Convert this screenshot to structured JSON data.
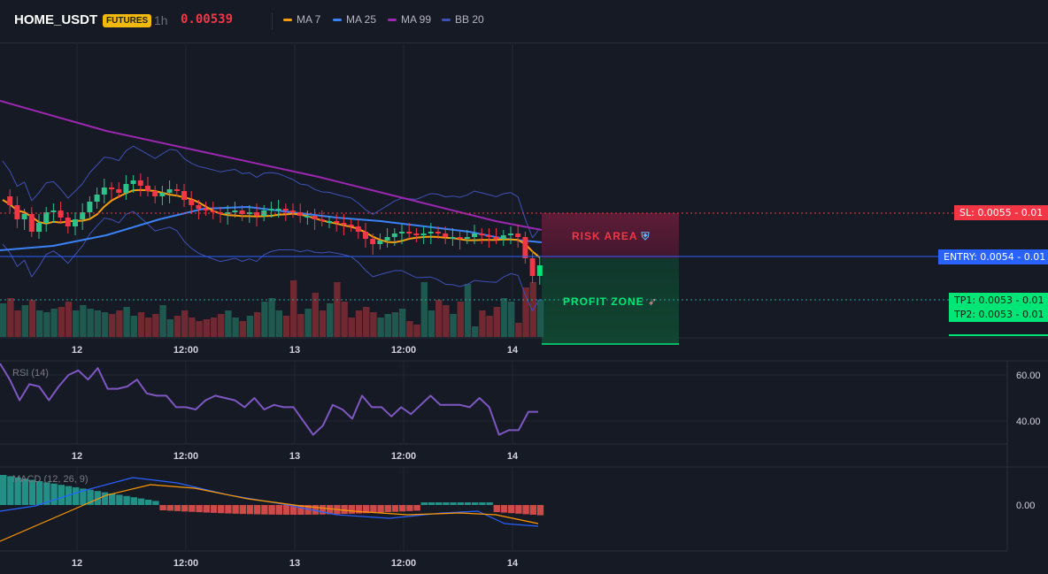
{
  "header": {
    "symbol": "HOME_USDT",
    "badge": "FUTURES",
    "timeframe": "1h",
    "price": "0.00539",
    "legend": [
      {
        "label": "MA 7",
        "color": "#f59e0b"
      },
      {
        "label": "MA 25",
        "color": "#3b82f6"
      },
      {
        "label": "MA 99",
        "color": "#9c27b0"
      },
      {
        "label": "BB 20",
        "color": "#3f51b5"
      }
    ]
  },
  "levels": {
    "sl": "SL: 0.0055 - 0.01",
    "entry": "ENTRY: 0.0054 - 0.01",
    "tp1": "TP1: 0.0053 - 0.01",
    "tp2": "TP2: 0.0053 - 0.01"
  },
  "zones": {
    "risk": "RISK AREA",
    "risk_icon": "shield-icon",
    "profit": "PROFIT ZONE",
    "profit_icon": "rocket-icon"
  },
  "colors": {
    "up": "#26a69a",
    "up_bright": "#00e676",
    "down": "#f23645",
    "ma7": "#f59e0b",
    "ma25": "#3b82f6",
    "ma99": "#9c27b0",
    "bb": "#3f51b5",
    "rsi": "#7e57c2",
    "macd_line": "#2962ff",
    "signal_line": "#ff9800"
  },
  "chart_data": [
    {
      "type": "candlestick",
      "x_ticks": [
        "12",
        "12:00",
        "13",
        "12:00",
        "14"
      ],
      "series": [
        {
          "name": "MA 7"
        },
        {
          "name": "MA 25"
        },
        {
          "name": "MA 99"
        },
        {
          "name": "BB 20"
        }
      ],
      "levels": {
        "sl": 0.0055,
        "entry": 0.0054,
        "tp1": 0.0053,
        "tp2": 0.0053
      }
    },
    {
      "type": "line",
      "title": "RSI (14)",
      "y_ticks": [
        "60.00",
        "40.00"
      ],
      "x_ticks": [
        "12",
        "12:00",
        "13",
        "12:00",
        "14"
      ],
      "values": [
        65,
        58,
        49,
        56,
        55,
        49,
        55,
        60,
        62,
        58,
        63,
        54,
        54,
        55,
        58,
        52,
        51,
        51,
        46,
        46,
        45,
        49,
        51,
        50,
        49,
        46,
        50,
        45,
        47,
        46,
        46,
        40,
        34,
        38,
        47,
        45,
        41,
        51,
        46,
        46,
        42,
        46,
        43,
        47,
        51,
        47,
        47,
        47,
        46,
        50,
        46,
        34,
        36,
        36,
        44,
        44
      ]
    },
    {
      "type": "bar",
      "title": "MACD (12, 26, 9)",
      "y_ticks": [
        "0.00"
      ],
      "x_ticks": [
        "12",
        "12:00",
        "13",
        "12:00",
        "14"
      ]
    }
  ]
}
